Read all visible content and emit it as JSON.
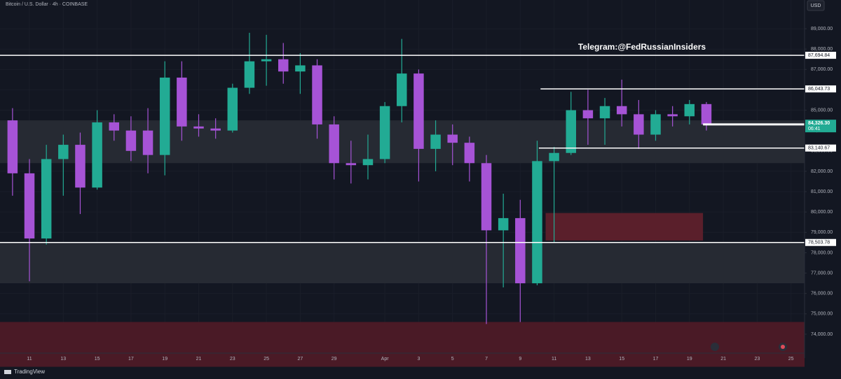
{
  "chart_data": {
    "type": "candlestick",
    "title": "Bitcoin / U.S. Dollar · 4h · COINBASE",
    "currency": "USD",
    "annotation": "Telegram:@FedRussianInsiders",
    "brand": "TradingView",
    "up_color": "#22ab94",
    "down_color": "#a653d6",
    "x": [
      10,
      11,
      12,
      13,
      14,
      15,
      16,
      17,
      18,
      19,
      20,
      21,
      22,
      23,
      24,
      25,
      26,
      27,
      28,
      29,
      30,
      31,
      32,
      33,
      34,
      35,
      36,
      37,
      38,
      39,
      40,
      41,
      42,
      43,
      44,
      45,
      46,
      47,
      48,
      49,
      50,
      51
    ],
    "open": [
      84500,
      81900,
      78700,
      82600,
      83300,
      81200,
      84400,
      84000,
      84000,
      82800,
      86600,
      84200,
      84100,
      84000,
      86100,
      87400,
      87500,
      86900,
      87200,
      84300,
      82400,
      82300,
      82600,
      85200,
      86800,
      83100,
      83800,
      83400,
      82400,
      79100,
      79700,
      76500,
      82500,
      82900,
      85000,
      84600,
      85200,
      84800,
      83800,
      84800,
      84700,
      85300
    ],
    "high": [
      85100,
      82600,
      83300,
      83800,
      83900,
      85000,
      84800,
      84700,
      85100,
      87400,
      87400,
      84800,
      84600,
      86300,
      88800,
      88700,
      88300,
      87800,
      87500,
      84700,
      83500,
      83800,
      85400,
      88500,
      87000,
      84500,
      84300,
      83700,
      82800,
      80900,
      80600,
      83500,
      83200,
      85900,
      86000,
      85600,
      86500,
      85500,
      85000,
      85200,
      85500,
      85400
    ],
    "low": [
      80800,
      76600,
      78400,
      80800,
      79900,
      81100,
      83500,
      82500,
      81900,
      81800,
      83500,
      83700,
      83600,
      83900,
      85800,
      86200,
      86300,
      85800,
      83600,
      81600,
      81400,
      81600,
      82400,
      84400,
      81500,
      82000,
      82300,
      81500,
      74500,
      76300,
      74600,
      76400,
      78500,
      82800,
      83300,
      83300,
      84200,
      83100,
      83500,
      84200,
      84300,
      84000
    ],
    "close": [
      81900,
      78700,
      82600,
      83300,
      81200,
      84400,
      84000,
      83000,
      82800,
      86600,
      84200,
      84100,
      84000,
      86100,
      87400,
      87500,
      86900,
      87200,
      84300,
      82400,
      82300,
      82600,
      85200,
      86800,
      83100,
      83800,
      83400,
      82400,
      79100,
      79700,
      76500,
      82500,
      82900,
      85000,
      84600,
      85200,
      84800,
      83800,
      84800,
      84700,
      85300,
      84300
    ],
    "xlim": [
      9.26,
      56.8
    ],
    "ylim": [
      72830,
      90410
    ],
    "xticks": [
      {
        "value": 11,
        "label": "11"
      },
      {
        "value": 13,
        "label": "13"
      },
      {
        "value": 15,
        "label": "15"
      },
      {
        "value": 17,
        "label": "17"
      },
      {
        "value": 19,
        "label": "19"
      },
      {
        "value": 21,
        "label": "21"
      },
      {
        "value": 23,
        "label": "23"
      },
      {
        "value": 25,
        "label": "25"
      },
      {
        "value": 27,
        "label": "27"
      },
      {
        "value": 29,
        "label": "29"
      },
      {
        "value": 32,
        "label": "Apr"
      },
      {
        "value": 34,
        "label": "3"
      },
      {
        "value": 36,
        "label": "5"
      },
      {
        "value": 38,
        "label": "7"
      },
      {
        "value": 40,
        "label": "9"
      },
      {
        "value": 42,
        "label": "11"
      },
      {
        "value": 44,
        "label": "13"
      },
      {
        "value": 46,
        "label": "15"
      },
      {
        "value": 48,
        "label": "17"
      },
      {
        "value": 50,
        "label": "19"
      },
      {
        "value": 52,
        "label": "21"
      },
      {
        "value": 54,
        "label": "23"
      },
      {
        "value": 56,
        "label": "25"
      }
    ],
    "yticks": [
      {
        "value": 74000,
        "label": "74,000.00"
      },
      {
        "value": 75000,
        "label": "75,000.00"
      },
      {
        "value": 76000,
        "label": "76,000.00"
      },
      {
        "value": 77000,
        "label": "77,000.00"
      },
      {
        "value": 78000,
        "label": "78,000.00"
      },
      {
        "value": 79000,
        "label": "79,000.00"
      },
      {
        "value": 80000,
        "label": "80,000.00"
      },
      {
        "value": 81000,
        "label": "81,000.00"
      },
      {
        "value": 82000,
        "label": "82,000.00"
      },
      {
        "value": 83000,
        "label": "83,000.00"
      },
      {
        "value": 84000,
        "label": "84,000.00"
      },
      {
        "value": 85000,
        "label": "85,000.00"
      },
      {
        "value": 86000,
        "label": "86,000.00"
      },
      {
        "value": 87000,
        "label": "87,000.00"
      },
      {
        "value": 88000,
        "label": "88,000.00"
      },
      {
        "value": 89000,
        "label": "89,000.00"
      }
    ],
    "grid": true,
    "zones": [
      {
        "x": [
          9.26,
          56.8
        ],
        "y": [
          82400,
          84500
        ],
        "color": "#262a33"
      },
      {
        "x": [
          9.26,
          56.8
        ],
        "y": [
          76500,
          78500
        ],
        "color": "#262a33"
      },
      {
        "x": [
          41.5,
          50.8
        ],
        "y": [
          78600,
          79950
        ],
        "color": "#5a1f2b"
      },
      {
        "x": [
          9.26,
          56.8
        ],
        "y": [
          72400,
          74600
        ],
        "color": "#4a1a26"
      }
    ],
    "levels": [
      {
        "value": 87694.84,
        "label": "87,694.84",
        "start": 9.26
      },
      {
        "value": 86043.73,
        "label": "86,043.73",
        "start": 41.2
      },
      {
        "value": 84275.66,
        "label": "84,275.66",
        "start": 50.8
      },
      {
        "value": 83140.67,
        "label": "83,140.67",
        "start": 41.1
      },
      {
        "value": 78503.78,
        "label": "78,503.78",
        "start": 9.26
      }
    ],
    "current_price": {
      "value": 84326.3,
      "label": "84,326.30",
      "countdown": "06:41",
      "start": 50.8,
      "color": "#22ab94"
    }
  }
}
